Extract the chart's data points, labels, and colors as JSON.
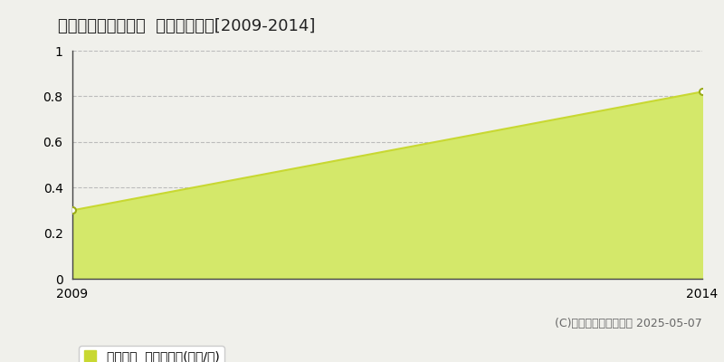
{
  "title": "加茂郡白川町下佐見  土地価格推移[2009-2014]",
  "x_values": [
    2009,
    2014
  ],
  "y_values": [
    0.3,
    0.82
  ],
  "xlim": [
    2009,
    2014
  ],
  "ylim": [
    0,
    1
  ],
  "yticks": [
    0,
    0.2,
    0.4,
    0.6,
    0.8,
    1
  ],
  "xticks": [
    2009,
    2014
  ],
  "line_color": "#c8d832",
  "fill_color": "#d4e86a",
  "marker_color": "#ffffff",
  "marker_edge_color": "#9aaa18",
  "grid_color": "#bbbbbb",
  "background_color": "#f0f0eb",
  "plot_bg_color": "#f0f0eb",
  "legend_label": "土地価格  平均坪単価(万円/坪)",
  "copyright_text": "(C)土地価格ドットコム 2025-05-07",
  "title_fontsize": 13,
  "axis_fontsize": 10,
  "legend_fontsize": 10,
  "copyright_fontsize": 9
}
